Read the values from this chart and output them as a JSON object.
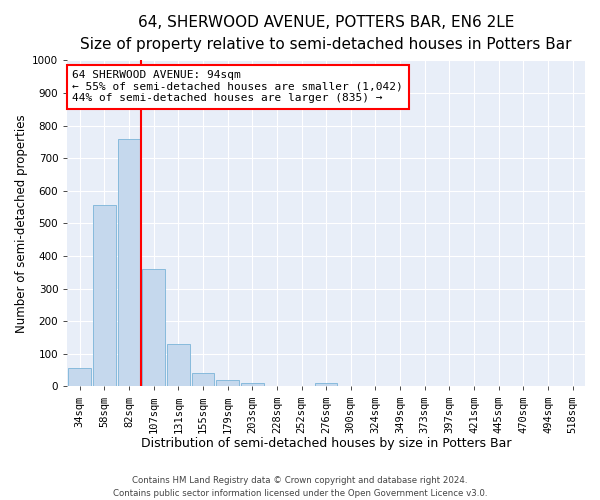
{
  "title": "64, SHERWOOD AVENUE, POTTERS BAR, EN6 2LE",
  "subtitle": "Size of property relative to semi-detached houses in Potters Bar",
  "xlabel": "Distribution of semi-detached houses by size in Potters Bar",
  "ylabel": "Number of semi-detached properties",
  "categories": [
    "34sqm",
    "58sqm",
    "82sqm",
    "107sqm",
    "131sqm",
    "155sqm",
    "179sqm",
    "203sqm",
    "228sqm",
    "252sqm",
    "276sqm",
    "300sqm",
    "324sqm",
    "349sqm",
    "373sqm",
    "397sqm",
    "421sqm",
    "445sqm",
    "470sqm",
    "494sqm",
    "518sqm"
  ],
  "bar_heights": [
    55,
    555,
    760,
    360,
    130,
    42,
    20,
    10,
    0,
    0,
    10,
    0,
    0,
    0,
    0,
    0,
    0,
    0,
    0,
    0,
    0
  ],
  "bar_color": "#c5d8ed",
  "bar_edge_color": "#7ab4d8",
  "reference_line_color": "red",
  "ylim": [
    0,
    1000
  ],
  "yticks": [
    0,
    100,
    200,
    300,
    400,
    500,
    600,
    700,
    800,
    900,
    1000
  ],
  "annotation_title": "64 SHERWOOD AVENUE: 94sqm",
  "annotation_line1": "← 55% of semi-detached houses are smaller (1,042)",
  "annotation_line2": "44% of semi-detached houses are larger (835) →",
  "annotation_box_color": "white",
  "annotation_box_edge": "red",
  "footer1": "Contains HM Land Registry data © Crown copyright and database right 2024.",
  "footer2": "Contains public sector information licensed under the Open Government Licence v3.0.",
  "plot_bg_color": "#e8eef8",
  "fig_bg_color": "#ffffff",
  "grid_color": "white",
  "title_fontsize": 11,
  "subtitle_fontsize": 9,
  "xlabel_fontsize": 9,
  "ylabel_fontsize": 8.5,
  "tick_fontsize": 7.5,
  "annotation_fontsize": 8
}
